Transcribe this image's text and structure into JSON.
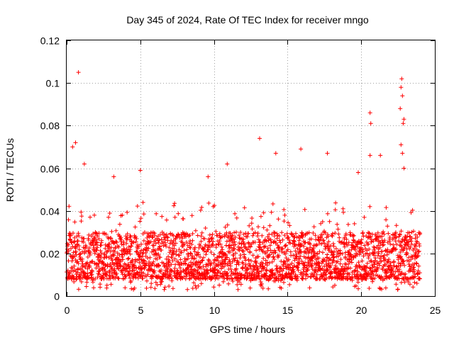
{
  "chart_data": {
    "type": "scatter",
    "title": "Day 345 of 2024, Rate Of TEC Index for receiver mngo",
    "xlabel": "GPS time / hours",
    "ylabel": "ROTI / TECUs",
    "xlim": [
      0,
      25
    ],
    "ylim": [
      0,
      0.12
    ],
    "xticks": [
      0,
      5,
      10,
      15,
      20,
      25
    ],
    "xtick_labels": [
      "0",
      "5",
      "10",
      "15",
      "20",
      "25"
    ],
    "yticks": [
      0,
      0.02,
      0.04,
      0.06,
      0.08,
      0.1,
      0.12
    ],
    "ytick_labels": [
      "0",
      "0.02",
      "0.04",
      "0.06",
      "0.08",
      "0.1",
      "0.12"
    ],
    "grid": true,
    "marker": "+",
    "marker_color": "#ff0000",
    "series": [
      {
        "name": "ROTI",
        "x_range": [
          0,
          24
        ],
        "typical_band": [
          0.008,
          0.03
        ],
        "notable_points": [
          {
            "x": 0.8,
            "y": 0.105
          },
          {
            "x": 0.6,
            "y": 0.072
          },
          {
            "x": 0.4,
            "y": 0.07
          },
          {
            "x": 1.2,
            "y": 0.062
          },
          {
            "x": 3.2,
            "y": 0.056
          },
          {
            "x": 5.0,
            "y": 0.059
          },
          {
            "x": 9.6,
            "y": 0.056
          },
          {
            "x": 10.9,
            "y": 0.062
          },
          {
            "x": 13.1,
            "y": 0.074
          },
          {
            "x": 14.2,
            "y": 0.067
          },
          {
            "x": 15.9,
            "y": 0.069
          },
          {
            "x": 17.7,
            "y": 0.067
          },
          {
            "x": 19.8,
            "y": 0.058
          },
          {
            "x": 20.6,
            "y": 0.086
          },
          {
            "x": 20.65,
            "y": 0.081
          },
          {
            "x": 20.6,
            "y": 0.066
          },
          {
            "x": 21.3,
            "y": 0.066
          },
          {
            "x": 22.75,
            "y": 0.102
          },
          {
            "x": 22.7,
            "y": 0.098
          },
          {
            "x": 22.8,
            "y": 0.094
          },
          {
            "x": 22.65,
            "y": 0.088
          },
          {
            "x": 22.9,
            "y": 0.083
          },
          {
            "x": 22.85,
            "y": 0.081
          },
          {
            "x": 22.7,
            "y": 0.071
          },
          {
            "x": 22.8,
            "y": 0.067
          },
          {
            "x": 22.9,
            "y": 0.06
          }
        ]
      }
    ]
  },
  "colors": {
    "markers": "#ff0000",
    "grid": "#a0a0a0",
    "axes": "#000000"
  }
}
